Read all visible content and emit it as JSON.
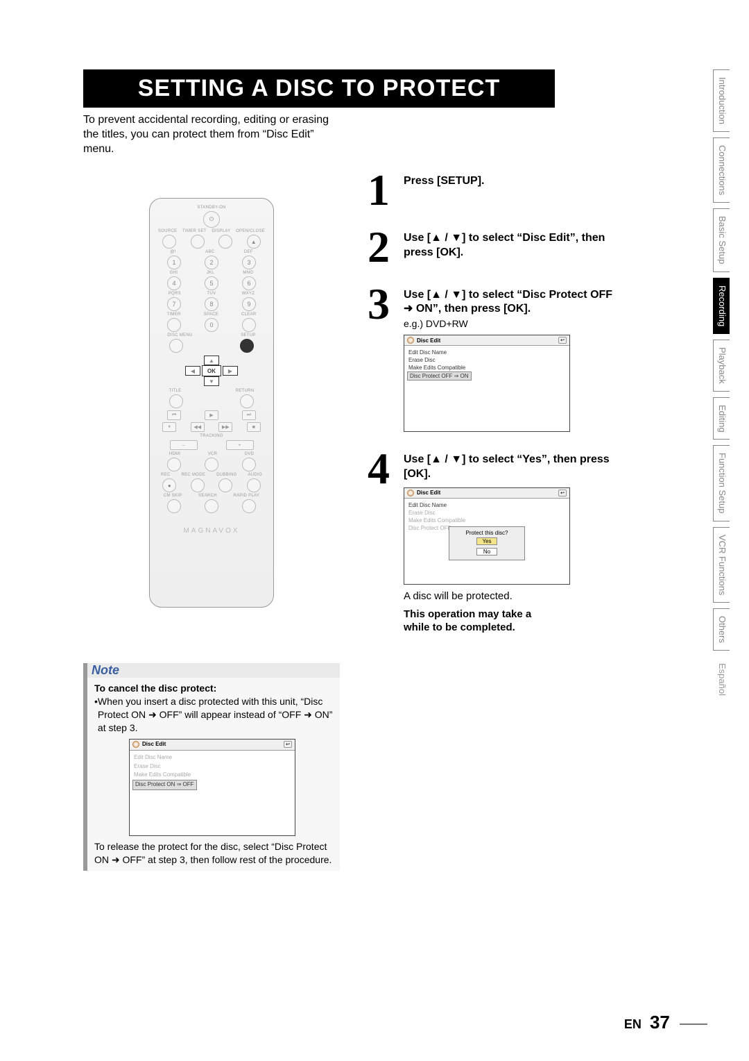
{
  "title": "SETTING A DISC TO PROTECT",
  "intro": "To prevent accidental recording, editing or erasing the titles, you can protect them from “Disc Edit” menu.",
  "remote": {
    "labels": {
      "standby": "STANDBY-ON",
      "row1": [
        "SOURCE",
        "TIMER SET",
        "DISPLAY",
        "OPEN/CLOSE"
      ],
      "letters": [
        "@!",
        "ABC",
        "DEF",
        "GHI",
        "JKL",
        "MNO",
        "PQRS",
        "TUV",
        "WXYZ"
      ],
      "subrow": [
        "TIMER",
        "SPACE",
        "CLEAR"
      ],
      "discMenu": "DISC MENU",
      "setup": "SETUP",
      "title_l": "TITLE",
      "return_l": "RETURN",
      "tracking": "TRACKING",
      "mode": [
        "HDMI",
        "VCR",
        "DVD"
      ],
      "rec": [
        "REC",
        "REC MODE",
        "DUBBING",
        "AUDIO"
      ],
      "bottom": [
        "CM SKIP",
        "SEARCH",
        "RAPID PLAY"
      ]
    },
    "brand": "MAGNAVOX",
    "ok": "OK"
  },
  "steps": [
    {
      "num": "1",
      "text": "Press [SETUP]."
    },
    {
      "num": "2",
      "text": "Use [▲ / ▼] to select “Disc Edit”, then press [OK]."
    },
    {
      "num": "3",
      "text": "Use [▲ / ▼] to select “Disc Protect OFF ➜ ON”, then press [OK].",
      "sub": "e.g.) DVD+RW"
    },
    {
      "num": "4",
      "text": "Use [▲ / ▼] to select “Yes”, then press [OK]."
    }
  ],
  "screen": {
    "title": "Disc Edit",
    "items": [
      "Edit Disc Name",
      "Erase Disc",
      "Make Edits Compatible"
    ],
    "protect_off_on": "Disc Protect OFF ⇒ ON",
    "protect_on_off": "Disc Protect ON ⇒ OFF",
    "dialog": {
      "q": "Protect this disc?",
      "yes": "Yes",
      "no": "No"
    }
  },
  "after4": "A disc will be protected.",
  "warn1": "This operation may take a",
  "warn2": "while to be completed.",
  "note": {
    "title": "Note",
    "subtitle": "To cancel the disc protect:",
    "bullet": "When you insert a disc protected with this unit, “Disc Protect ON ➜ OFF” will appear instead of “OFF ➜ ON” at step 3.",
    "release": "To release the protect for the disc, select “Disc Protect ON ➜ OFF” at step 3, then follow rest of the procedure."
  },
  "tabs": [
    "Introduction",
    "Connections",
    "Basic Setup",
    "Recording",
    "Playback",
    "Editing",
    "Function Setup",
    "VCR Functions",
    "Others",
    "Español"
  ],
  "active_tab": "Recording",
  "footer": {
    "lang": "EN",
    "page": "37"
  }
}
